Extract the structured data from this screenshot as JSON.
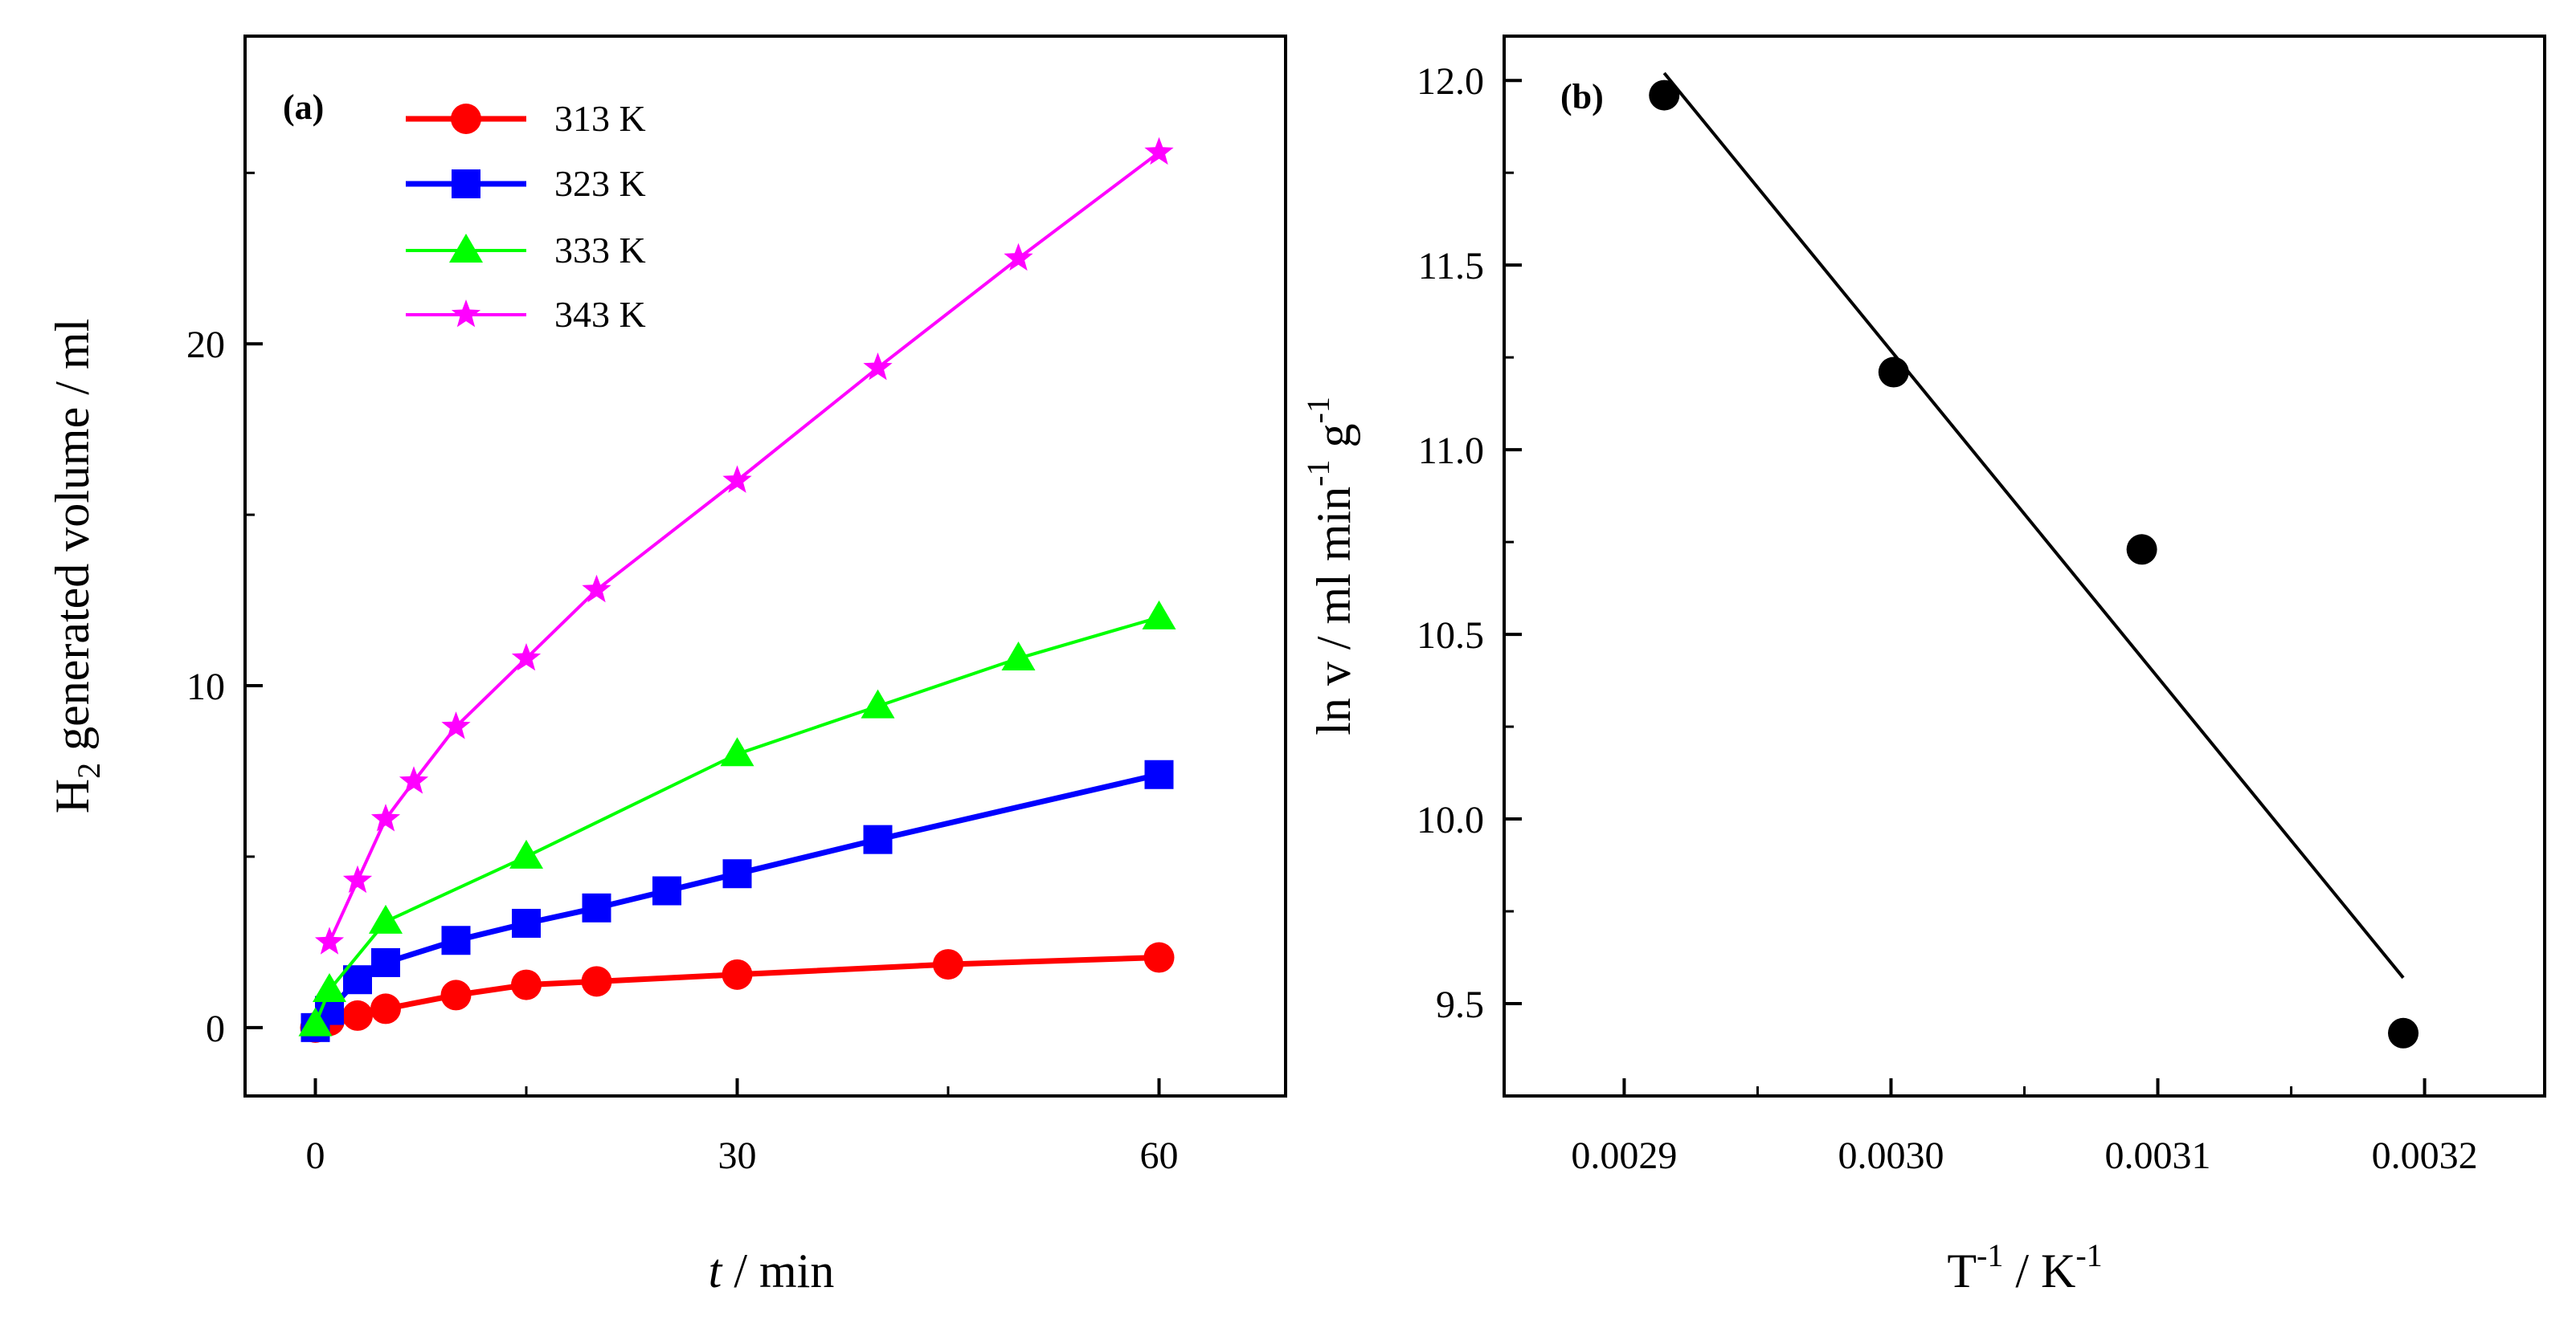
{
  "chart_data": [
    {
      "type": "line",
      "panel_label": "(a)",
      "title": "",
      "xlabel_italic": "t",
      "xlabel_rest": " / min",
      "ylabel_main": "H",
      "ylabel_sub": "2",
      "ylabel_rest": " generated volume / ml",
      "xlim": [
        -5,
        69
      ],
      "ylim": [
        -2,
        29
      ],
      "xticks": [
        0,
        30,
        60
      ],
      "xtick_labels": [
        "0",
        "30",
        "60"
      ],
      "yticks": [
        0,
        10,
        20
      ],
      "ytick_labels": [
        "0",
        "10",
        "20"
      ],
      "legend_position": "top-left",
      "series": [
        {
          "name": "313 K",
          "color": "#ff0000",
          "marker": "circle",
          "x": [
            0,
            1,
            3,
            5,
            10,
            15,
            20,
            30,
            45,
            60
          ],
          "y": [
            0.0,
            0.2,
            0.35,
            0.55,
            0.95,
            1.25,
            1.35,
            1.55,
            1.85,
            2.05
          ]
        },
        {
          "name": "323 K",
          "color": "#0000ff",
          "marker": "square",
          "x": [
            0,
            1,
            3,
            5,
            10,
            15,
            20,
            25,
            30,
            40,
            60
          ],
          "y": [
            0.0,
            0.5,
            1.4,
            1.9,
            2.55,
            3.05,
            3.5,
            4.0,
            4.5,
            5.5,
            7.4
          ]
        },
        {
          "name": "333 K",
          "color": "#00ff00",
          "marker": "triangle",
          "x": [
            0,
            1,
            5,
            15,
            30,
            40,
            50,
            60
          ],
          "y": [
            0.1,
            1.1,
            3.1,
            5.0,
            8.0,
            9.4,
            10.8,
            12.0
          ]
        },
        {
          "name": "343 K",
          "color": "#ff00ff",
          "marker": "star",
          "x": [
            1,
            3,
            5,
            7,
            10,
            15,
            20,
            30,
            40,
            50,
            60
          ],
          "y": [
            2.5,
            4.3,
            6.1,
            7.2,
            8.8,
            10.8,
            12.8,
            16.0,
            19.3,
            22.5,
            25.6
          ]
        }
      ]
    },
    {
      "type": "scatter",
      "panel_label": "(b)",
      "title": "",
      "xlabel_main": "T",
      "xlabel_sup1": "-1",
      "xlabel_mid": " / K",
      "xlabel_sup2": "-1",
      "ylabel_main": "ln v / ml min",
      "ylabel_sup1": "-1",
      "ylabel_mid": " g",
      "ylabel_sup2": "-1",
      "xlim": [
        0.002855,
        0.003245
      ],
      "ylim": [
        9.25,
        12.12
      ],
      "xticks": [
        0.0029,
        0.003,
        0.0031,
        0.0032
      ],
      "xtick_labels": [
        "0.0029",
        "0.0030",
        "0.0031",
        "0.0032"
      ],
      "yticks": [
        9.5,
        10.0,
        10.5,
        11.0,
        11.5,
        12.0
      ],
      "ytick_labels": [
        "9.5",
        "10.0",
        "10.5",
        "11.0",
        "11.5",
        "12.0"
      ],
      "points": {
        "x": [
          0.002915,
          0.003001,
          0.003094,
          0.003192
        ],
        "y": [
          11.96,
          11.21,
          10.73,
          9.42
        ]
      },
      "fit_line": {
        "x": [
          0.002915,
          0.003192
        ],
        "y": [
          12.02,
          9.57
        ]
      }
    }
  ]
}
